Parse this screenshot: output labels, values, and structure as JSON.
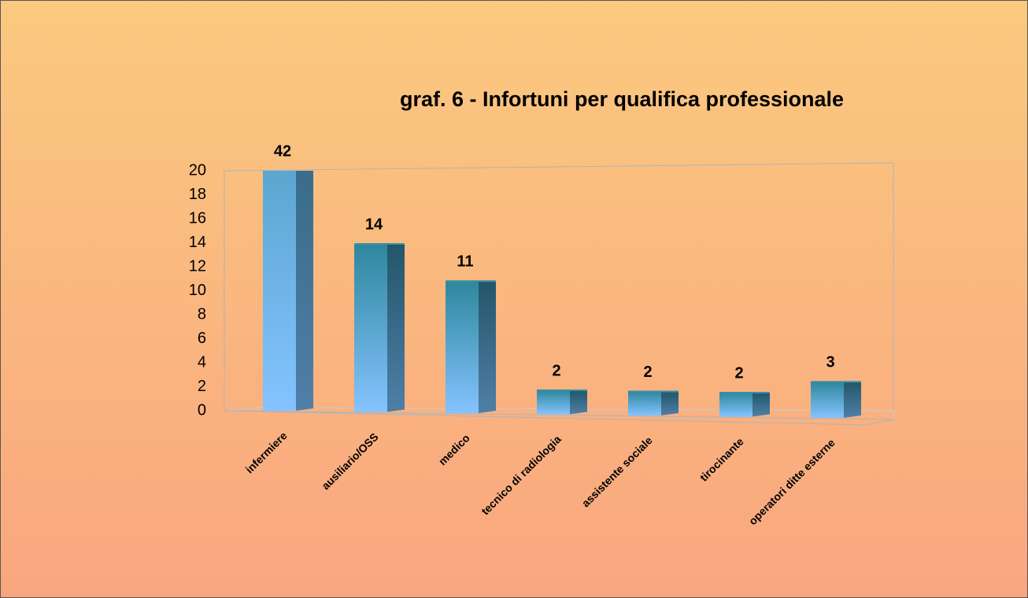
{
  "chart_data": {
    "type": "bar3d",
    "title": "graf. 6 - Infortuni per qualifica professionale",
    "categories": [
      "infermiere",
      "ausiliario/OSS",
      "medico",
      "tecnico di radiologia",
      "assistente sociale",
      "tirocinante",
      "operatori ditte esterne"
    ],
    "values": [
      42,
      14,
      11,
      2,
      2,
      2,
      3
    ],
    "color": "#3a8fa8",
    "ylim": [
      0,
      20
    ],
    "yticks": [
      0,
      2,
      4,
      6,
      8,
      10,
      12,
      14,
      16,
      18,
      20
    ],
    "grid": false
  }
}
